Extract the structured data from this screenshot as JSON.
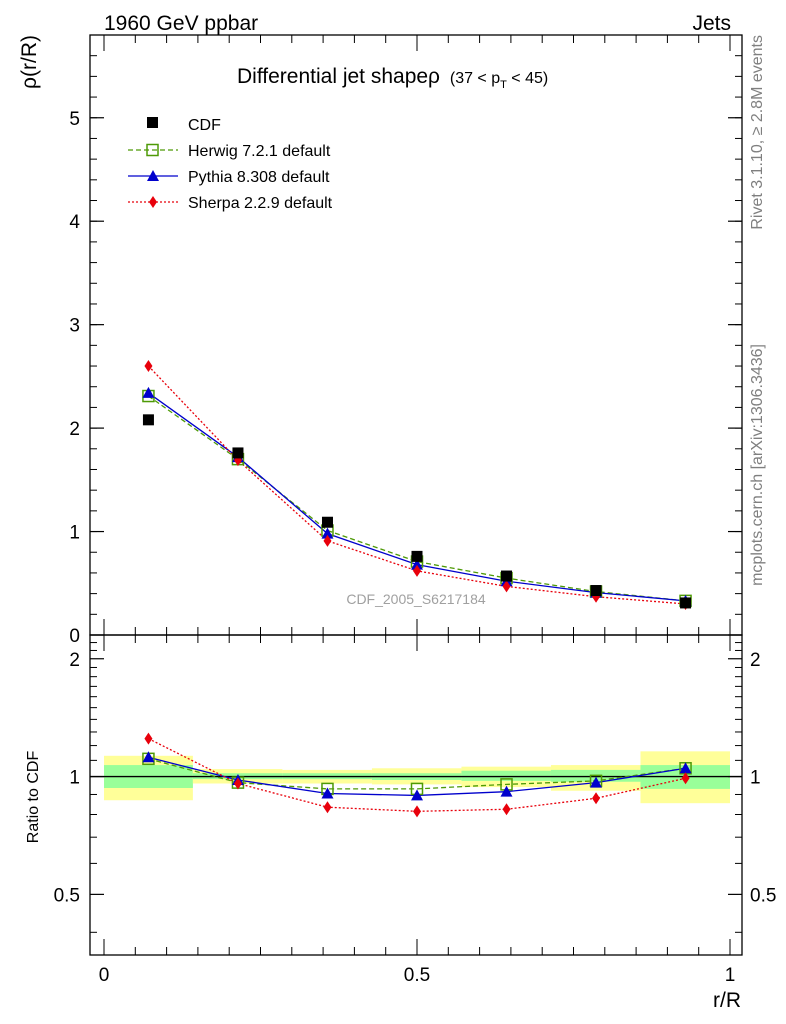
{
  "header": {
    "left": "1960 GeV ppbar",
    "right": "Jets"
  },
  "side_labels": {
    "rivet": "Rivet 3.1.10, ≥ 2.8M events",
    "mcplots": "mcplots.cern.ch [arXiv:1306.3436]"
  },
  "chart_data": {
    "type": "line",
    "title": "Differential jet shapeρ",
    "title_cut": "(37 < p",
    "title_cut_sub": "T",
    "title_cut_end": " < 45)",
    "analysis_id": "CDF_2005_S6217184",
    "xlabel": "r/R",
    "ylabel": "ρ(r/R)",
    "ratio_ylabel": "Ratio to CDF",
    "xlim": [
      0,
      1
    ],
    "ylim": [
      0,
      5.8
    ],
    "ratio_ylim": [
      0.35,
      2.3
    ],
    "ratio_log_scale": true,
    "x_ticks": [
      "0",
      "0.5",
      "1"
    ],
    "y_ticks": [
      "0",
      "1",
      "2",
      "3",
      "4",
      "5"
    ],
    "ratio_ticks": [
      "0.5",
      "1",
      "2"
    ],
    "bin_edges": [
      0,
      0.142,
      0.285,
      0.428,
      0.571,
      0.714,
      0.857,
      1.0
    ],
    "x": [
      0.071,
      0.214,
      0.357,
      0.5,
      0.643,
      0.786,
      0.929
    ],
    "reference": {
      "name": "CDF",
      "values": [
        2.08,
        1.76,
        1.09,
        0.76,
        0.57,
        0.43,
        0.31
      ]
    },
    "series": [
      {
        "name": "Herwig 7.2.1 default",
        "color": "#4e9a06",
        "style": "dashed",
        "marker": "open-square",
        "values": [
          2.31,
          1.7,
          1.01,
          0.71,
          0.55,
          0.42,
          0.33
        ]
      },
      {
        "name": "Pythia 8.308 default",
        "color": "#0000cc",
        "style": "solid",
        "marker": "triangle",
        "values": [
          2.34,
          1.72,
          0.98,
          0.68,
          0.52,
          0.41,
          0.33
        ]
      },
      {
        "name": "Sherpa 2.2.9 default",
        "color": "#e8000b",
        "style": "dotted",
        "marker": "diamond",
        "values": [
          2.6,
          1.69,
          0.91,
          0.62,
          0.47,
          0.37,
          0.3
        ]
      }
    ],
    "ratio_series": [
      {
        "name": "Herwig 7.2.1 default",
        "values": [
          1.11,
          0.965,
          0.93,
          0.93,
          0.955,
          0.975,
          1.05
        ]
      },
      {
        "name": "Pythia 8.308 default",
        "values": [
          1.12,
          0.98,
          0.905,
          0.895,
          0.915,
          0.965,
          1.05
        ]
      },
      {
        "name": "Sherpa 2.2.9 default",
        "values": [
          1.25,
          0.96,
          0.835,
          0.815,
          0.825,
          0.88,
          0.99
        ]
      }
    ],
    "ratio_band_inner": [
      [
        0.935,
        1.07
      ],
      [
        0.985,
        1.02
      ],
      [
        0.985,
        1.02
      ],
      [
        0.98,
        1.02
      ],
      [
        0.975,
        1.035
      ],
      [
        0.97,
        1.04
      ],
      [
        0.93,
        1.07
      ]
    ],
    "ratio_band_outer": [
      [
        0.87,
        1.13
      ],
      [
        0.96,
        1.045
      ],
      [
        0.96,
        1.04
      ],
      [
        0.955,
        1.05
      ],
      [
        0.94,
        1.06
      ],
      [
        0.92,
        1.07
      ],
      [
        0.855,
        1.16
      ]
    ],
    "colors": {
      "band_inner": "#99ff99",
      "band_outer": "#ffff99",
      "analysis_label": "#a0a0a0",
      "axis": "#000000"
    },
    "legend_position": "top-left"
  }
}
